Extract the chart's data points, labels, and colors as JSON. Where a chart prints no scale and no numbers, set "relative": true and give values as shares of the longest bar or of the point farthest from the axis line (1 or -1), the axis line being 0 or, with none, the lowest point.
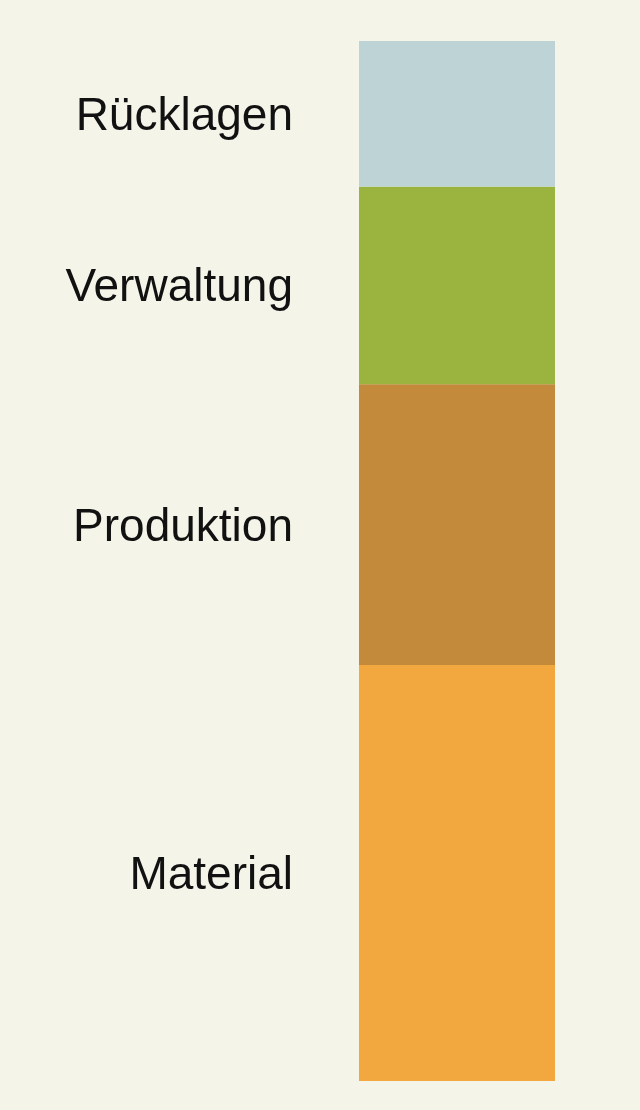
{
  "chart_data": {
    "type": "bar",
    "stacked": true,
    "relative": true,
    "categories": [
      null
    ],
    "series": [
      {
        "name": "Material",
        "color": "#f2a83e",
        "values": [
          0.4
        ]
      },
      {
        "name": "Produktion",
        "color": "#c38a3c",
        "values": [
          0.27
        ]
      },
      {
        "name": "Verwaltung",
        "color": "#9ab43f",
        "values": [
          0.19
        ]
      },
      {
        "name": "Rücklagen",
        "color": "#bed3d6",
        "values": [
          0.14
        ]
      }
    ]
  }
}
